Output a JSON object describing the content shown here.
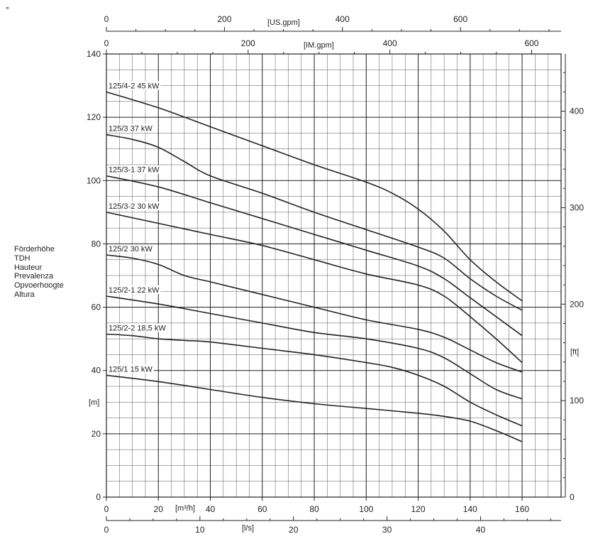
{
  "logo_text": "ₓₓₓₓ",
  "head_labels": [
    "Förderhöhe",
    "TDH",
    "Hauteur",
    "Prevalenza",
    "Opvoerhoogte",
    "Altura"
  ],
  "units": {
    "m": "[m]",
    "ft": "[ft]",
    "us_gpm": "[US.gpm]",
    "im_gpm": "[IM.gpm]",
    "m3h": "[m³/h]",
    "ls": "[l/s]"
  },
  "chart_data": {
    "type": "line",
    "grid": true,
    "xlabel": "[m³/h]",
    "ylabel": "[m]",
    "xlim": [
      0,
      175
    ],
    "ylim": [
      0,
      140
    ],
    "x_ticks": [
      0,
      20,
      40,
      60,
      80,
      100,
      120,
      140,
      160
    ],
    "y_ticks": [
      0,
      20,
      40,
      60,
      80,
      100,
      120,
      140
    ],
    "secondary_axes": {
      "us_gpm_ticks": [
        0,
        200,
        400,
        600
      ],
      "im_gpm_ticks": [
        0,
        200,
        400,
        600
      ],
      "ls_ticks": [
        0,
        10,
        20,
        30,
        40
      ],
      "ft_ticks": [
        0,
        100,
        200,
        300,
        400
      ]
    },
    "series": [
      {
        "name": "125/4-2 45 kW",
        "x": [
          0,
          20,
          40,
          60,
          80,
          100,
          110,
          120,
          130,
          140,
          150,
          160
        ],
        "y": [
          128,
          123,
          117,
          111,
          105,
          99.5,
          96,
          91,
          84,
          75,
          68,
          62
        ]
      },
      {
        "name": "125/3 37 kW",
        "x": [
          0,
          10,
          20,
          30,
          40,
          60,
          80,
          100,
          120,
          130,
          140,
          150,
          160
        ],
        "y": [
          114.5,
          113,
          110.5,
          106,
          101.5,
          96,
          90,
          84.5,
          79,
          75.5,
          69,
          63.5,
          59
        ]
      },
      {
        "name": "125/3-1 37 kW",
        "x": [
          0,
          20,
          40,
          60,
          80,
          100,
          120,
          130,
          140,
          150,
          160
        ],
        "y": [
          101.5,
          98,
          93,
          88,
          83,
          78,
          73,
          69,
          63,
          57,
          51
        ]
      },
      {
        "name": "125/3-2 30 kW",
        "x": [
          0,
          20,
          40,
          60,
          80,
          100,
          120,
          130,
          140,
          150,
          160
        ],
        "y": [
          90,
          86.5,
          83,
          79.5,
          75,
          70.5,
          67,
          63.5,
          57,
          50,
          42.5
        ]
      },
      {
        "name": "125/2 30 kW",
        "x": [
          0,
          10,
          20,
          30,
          40,
          60,
          80,
          100,
          120,
          130,
          140,
          150,
          160
        ],
        "y": [
          76.5,
          75.5,
          73.5,
          70,
          68,
          64,
          60,
          56,
          53,
          50.5,
          46.5,
          42.5,
          39.5
        ]
      },
      {
        "name": "125/2-1 22 kW",
        "x": [
          0,
          20,
          40,
          60,
          80,
          100,
          120,
          130,
          140,
          150,
          160
        ],
        "y": [
          63.5,
          61,
          58,
          55,
          52,
          50,
          47,
          44,
          39,
          34,
          31
        ]
      },
      {
        "name": "125/2-2 18,5 kW",
        "x": [
          0,
          10,
          20,
          30,
          40,
          60,
          80,
          100,
          110,
          120,
          130,
          140,
          150,
          160
        ],
        "y": [
          51.5,
          51,
          50,
          49.5,
          49,
          47,
          45,
          42.5,
          41,
          38.5,
          35,
          30,
          26,
          22.5
        ]
      },
      {
        "name": "125/1 15 kW",
        "x": [
          0,
          20,
          40,
          60,
          80,
          100,
          120,
          130,
          140,
          150,
          160
        ],
        "y": [
          38.5,
          36.5,
          34,
          31.5,
          29.5,
          28,
          26.5,
          25.5,
          24,
          21,
          17.5
        ]
      }
    ]
  }
}
